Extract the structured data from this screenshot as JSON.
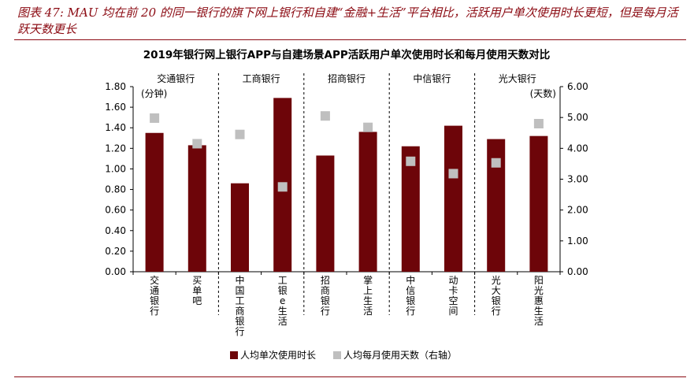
{
  "caption": "图表 47: MAU 均在前 20 的同一银行的旗下网上银行和自建“金融+生活”平台相比，活跃用户单次使用时长更短，但是每月活跃天数更长",
  "chart_data": {
    "type": "bar",
    "title": "2019年银行网上银行APP与自建场景APP活跃用户单次使用时长和每月使用天数对比",
    "categories": [
      "交通银行",
      "买单吧",
      "中国工商银行",
      "工银e生活",
      "招商银行",
      "掌上生活",
      "中信银行",
      "动卡空间",
      "光大银行",
      "阳光惠生活"
    ],
    "groups": [
      {
        "name": "交通银行",
        "span": [
          0,
          1
        ]
      },
      {
        "name": "工商银行",
        "span": [
          2,
          3
        ]
      },
      {
        "name": "招商银行",
        "span": [
          4,
          5
        ]
      },
      {
        "name": "中信银行",
        "span": [
          6,
          7
        ]
      },
      {
        "name": "光大银行",
        "span": [
          8,
          9
        ]
      }
    ],
    "series": [
      {
        "name": "人均单次使用时长",
        "type": "bar",
        "axis": "left",
        "color": "#6d0509",
        "values": [
          1.35,
          1.23,
          0.86,
          1.69,
          1.13,
          1.36,
          1.22,
          1.42,
          1.29,
          1.32
        ]
      },
      {
        "name": "人均每月使用天数（右轴）",
        "type": "scatter",
        "axis": "right",
        "color": "#bfbfbf",
        "values": [
          4.98,
          4.15,
          4.45,
          2.75,
          5.05,
          4.68,
          3.58,
          3.18,
          3.53,
          4.8
        ]
      }
    ],
    "y_left": {
      "unit": "(分钟)",
      "ylim": [
        0,
        1.8
      ],
      "ticks": [
        "0.00",
        "0.20",
        "0.40",
        "0.60",
        "0.80",
        "1.00",
        "1.20",
        "1.40",
        "1.60",
        "1.80"
      ]
    },
    "y_right": {
      "unit": "(天数)",
      "ylim": [
        0,
        6
      ],
      "ticks": [
        "0.00",
        "1.00",
        "2.00",
        "3.00",
        "4.00",
        "5.00",
        "6.00"
      ]
    },
    "grid": false,
    "legend_position": "bottom"
  }
}
